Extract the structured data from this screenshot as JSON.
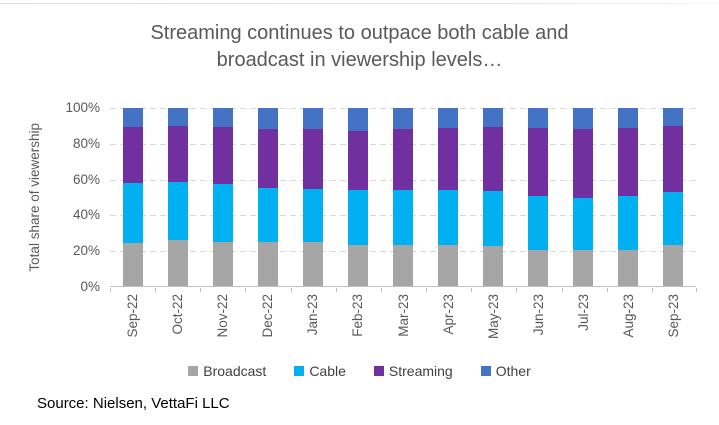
{
  "title": {
    "line1": "Streaming continues to outpace both cable and",
    "line2": "broadcast in viewership levels…"
  },
  "source": "Source: Nielsen, VettaFi LLC",
  "chart_data": {
    "type": "bar",
    "stacked": true,
    "title": "Streaming continues to outpace both cable and broadcast in viewership levels…",
    "ylabel": "Total share of viewership",
    "xlabel": "",
    "ylim": [
      0,
      100
    ],
    "ytick_values": [
      0,
      20,
      40,
      60,
      80,
      100
    ],
    "ytick_labels": [
      "0%",
      "20%",
      "40%",
      "60%",
      "80%",
      "100%"
    ],
    "grid": "horizontal-dashed",
    "legend_position": "bottom",
    "categories": [
      "Sep-22",
      "Oct-22",
      "Nov-22",
      "Dec-22",
      "Jan-23",
      "Feb-23",
      "Mar-23",
      "Apr-23",
      "May-23",
      "Jun-23",
      "Jul-23",
      "Aug-23",
      "Sep-23"
    ],
    "series": [
      {
        "name": "Broadcast",
        "color": "#A6A6A6",
        "values": [
          24,
          26,
          25,
          24.5,
          24.5,
          23,
          23,
          23,
          22.5,
          20.5,
          20,
          20.4,
          23
        ]
      },
      {
        "name": "Cable",
        "color": "#00B0F0",
        "values": [
          34,
          32.5,
          32.5,
          30.5,
          30,
          31,
          31,
          31,
          31,
          30,
          29.5,
          30.1,
          30
        ]
      },
      {
        "name": "Streaming",
        "color": "#7030A0",
        "values": [
          31.5,
          31.5,
          32,
          33,
          33.5,
          33,
          34,
          34.5,
          36,
          38.5,
          39,
          38.5,
          37
        ]
      },
      {
        "name": "Other",
        "color": "#4472C4",
        "values": [
          10.5,
          10,
          10.5,
          12,
          12,
          13,
          12,
          11.5,
          10.5,
          11,
          11.5,
          11,
          10
        ]
      }
    ]
  }
}
